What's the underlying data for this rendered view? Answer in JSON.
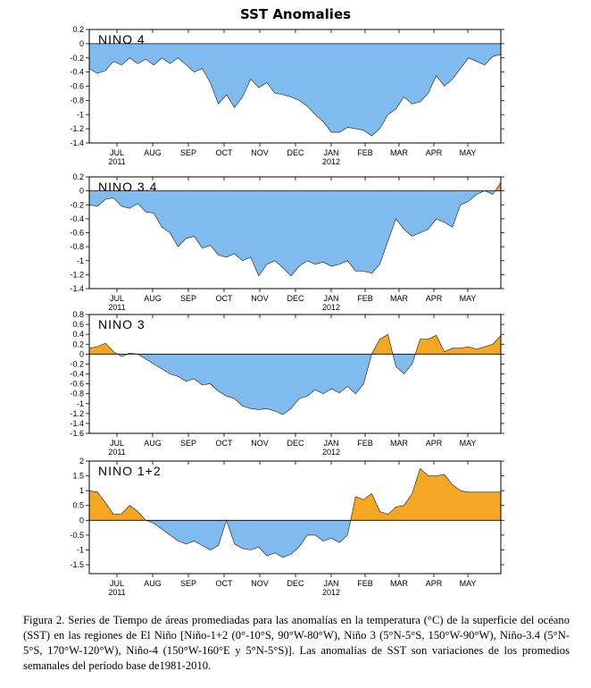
{
  "figure": {
    "title": "SST Anomalies",
    "caption": "Figura 2. Series de Tiempo de áreas promediadas para las anomalías en la temperatura (°C) de la superficie del océano (SST) en las regiones de El Niño [Niño-1+2 (0°-10°S, 90°W-80°W), Niño 3 (5°N-5°S, 150°W-90°W), Niño-3.4 (5°N-5°S, 170°W-120°W), Niño-4 (150°W-160°E y 5°N-5°S)]. Las anomalías de SST son variaciones de los promedios semanales del período base de1981-2010.",
    "colors": {
      "positive": "#f5a623",
      "negative": "#7fbbee"
    }
  },
  "chart_data": [
    {
      "type": "area",
      "label": "NINO 4",
      "ylim": [
        -1.4,
        0.2
      ],
      "yticks": [
        0.2,
        0,
        -0.2,
        -0.4,
        -0.6,
        -0.8,
        -1,
        -1.2,
        -1.4
      ],
      "x_labels": [
        "JUL",
        "AUG",
        "SEP",
        "OCT",
        "NOV",
        "DEC",
        "JAN",
        "FEB",
        "MAR",
        "APR",
        "MAY"
      ],
      "year_labels": [
        "2011",
        "2012"
      ],
      "x_week": [
        0,
        1,
        2,
        3,
        4,
        5,
        6,
        7,
        8,
        9,
        10,
        11,
        12,
        13,
        14,
        15,
        16,
        17,
        18,
        19,
        20,
        21,
        22,
        23,
        24,
        25,
        26,
        27,
        28,
        29,
        30,
        31,
        32,
        33,
        34,
        35,
        36,
        37,
        38,
        39,
        40,
        41,
        42,
        43,
        44,
        45,
        46,
        47,
        48,
        49,
        50,
        51
      ],
      "values": [
        -0.35,
        -0.42,
        -0.38,
        -0.25,
        -0.3,
        -0.2,
        -0.28,
        -0.22,
        -0.3,
        -0.2,
        -0.28,
        -0.2,
        -0.3,
        -0.4,
        -0.35,
        -0.55,
        -0.85,
        -0.72,
        -0.9,
        -0.75,
        -0.5,
        -0.62,
        -0.55,
        -0.7,
        -0.72,
        -0.75,
        -0.8,
        -0.88,
        -1.0,
        -1.1,
        -1.25,
        -1.25,
        -1.18,
        -1.2,
        -1.22,
        -1.3,
        -1.2,
        -1.0,
        -0.92,
        -0.75,
        -0.85,
        -0.82,
        -0.7,
        -0.45,
        -0.6,
        -0.5,
        -0.35,
        -0.2,
        -0.25,
        -0.3,
        -0.18,
        -0.15
      ]
    },
    {
      "type": "area",
      "label": "NINO 3.4",
      "ylim": [
        -1.4,
        0.2
      ],
      "yticks": [
        0.2,
        0,
        -0.2,
        -0.4,
        -0.6,
        -0.8,
        -1,
        -1.2,
        -1.4
      ],
      "x_labels": [
        "JUL",
        "AUG",
        "SEP",
        "OCT",
        "NOV",
        "DEC",
        "JAN",
        "FEB",
        "MAR",
        "APR",
        "MAY"
      ],
      "year_labels": [
        "2011",
        "2012"
      ],
      "x_week": [
        0,
        1,
        2,
        3,
        4,
        5,
        6,
        7,
        8,
        9,
        10,
        11,
        12,
        13,
        14,
        15,
        16,
        17,
        18,
        19,
        20,
        21,
        22,
        23,
        24,
        25,
        26,
        27,
        28,
        29,
        30,
        31,
        32,
        33,
        34,
        35,
        36,
        37,
        38,
        39,
        40,
        41,
        42,
        43,
        44,
        45,
        46,
        47,
        48,
        49,
        50,
        51
      ],
      "values": [
        -0.2,
        -0.22,
        -0.12,
        -0.1,
        -0.22,
        -0.25,
        -0.18,
        -0.3,
        -0.32,
        -0.52,
        -0.6,
        -0.8,
        -0.68,
        -0.65,
        -0.82,
        -0.78,
        -0.92,
        -0.95,
        -0.9,
        -1.0,
        -0.95,
        -1.22,
        -1.05,
        -1.0,
        -1.1,
        -1.22,
        -1.08,
        -1.0,
        -1.05,
        -1.02,
        -1.08,
        -1.05,
        -1.0,
        -1.15,
        -1.15,
        -1.18,
        -1.05,
        -0.72,
        -0.4,
        -0.55,
        -0.65,
        -0.6,
        -0.55,
        -0.4,
        -0.45,
        -0.52,
        -0.2,
        -0.15,
        -0.05,
        0.0,
        -0.05,
        0.12
      ]
    },
    {
      "type": "area",
      "label": "NINO 3",
      "ylim": [
        -1.6,
        0.8
      ],
      "yticks": [
        0.8,
        0.6,
        0.4,
        0.2,
        0,
        -0.2,
        -0.4,
        -0.6,
        -0.8,
        -1,
        -1.2,
        -1.4,
        -1.6
      ],
      "x_labels": [
        "JUL",
        "AUG",
        "SEP",
        "OCT",
        "NOV",
        "DEC",
        "JAN",
        "FEB",
        "MAR",
        "APR",
        "MAY"
      ],
      "year_labels": [
        "2011",
        "2012"
      ],
      "x_week": [
        0,
        1,
        2,
        3,
        4,
        5,
        6,
        7,
        8,
        9,
        10,
        11,
        12,
        13,
        14,
        15,
        16,
        17,
        18,
        19,
        20,
        21,
        22,
        23,
        24,
        25,
        26,
        27,
        28,
        29,
        30,
        31,
        32,
        33,
        34,
        35,
        36,
        37,
        38,
        39,
        40,
        41,
        42,
        43,
        44,
        45,
        46,
        47,
        48,
        49,
        50,
        51
      ],
      "values": [
        0.12,
        0.15,
        0.22,
        0.05,
        -0.05,
        0.02,
        0.0,
        -0.1,
        -0.2,
        -0.3,
        -0.4,
        -0.45,
        -0.55,
        -0.5,
        -0.62,
        -0.6,
        -0.75,
        -0.85,
        -0.9,
        -1.05,
        -1.1,
        -1.12,
        -1.1,
        -1.15,
        -1.22,
        -1.1,
        -0.9,
        -0.85,
        -0.72,
        -0.8,
        -0.7,
        -0.78,
        -0.65,
        -0.8,
        -0.6,
        0.0,
        0.3,
        0.4,
        -0.25,
        -0.4,
        -0.2,
        0.3,
        0.3,
        0.38,
        0.05,
        0.12,
        0.12,
        0.15,
        0.1,
        0.15,
        0.2,
        0.38
      ]
    },
    {
      "type": "area",
      "label": "NINO 1+2",
      "ylim": [
        -1.8,
        2.0
      ],
      "yticks": [
        2,
        1.5,
        1,
        0.5,
        0,
        -0.5,
        -1,
        -1.5
      ],
      "x_labels": [
        "JUL",
        "AUG",
        "SEP",
        "OCT",
        "NOV",
        "DEC",
        "JAN",
        "FEB",
        "MAR",
        "APR",
        "MAY"
      ],
      "year_labels": [
        "2011",
        "2012"
      ],
      "x_week": [
        0,
        1,
        2,
        3,
        4,
        5,
        6,
        7,
        8,
        9,
        10,
        11,
        12,
        13,
        14,
        15,
        16,
        17,
        18,
        19,
        20,
        21,
        22,
        23,
        24,
        25,
        26,
        27,
        28,
        29,
        30,
        31,
        32,
        33,
        34,
        35,
        36,
        37,
        38,
        39,
        40,
        41,
        42,
        43,
        44,
        45,
        46,
        47,
        48,
        49,
        50,
        51
      ],
      "values": [
        1.0,
        0.95,
        0.6,
        0.2,
        0.22,
        0.5,
        0.3,
        0.0,
        -0.1,
        -0.3,
        -0.5,
        -0.7,
        -0.8,
        -0.7,
        -0.85,
        -1.0,
        -0.85,
        0.0,
        -0.8,
        -0.95,
        -1.0,
        -0.9,
        -1.2,
        -1.1,
        -1.25,
        -1.15,
        -0.9,
        -0.5,
        -0.5,
        -0.7,
        -0.6,
        -0.75,
        -0.5,
        0.8,
        0.7,
        0.9,
        0.3,
        0.2,
        0.45,
        0.5,
        0.9,
        1.75,
        1.5,
        1.5,
        1.55,
        1.2,
        1.0,
        0.95,
        0.95,
        0.95,
        0.95,
        0.95
      ]
    }
  ]
}
